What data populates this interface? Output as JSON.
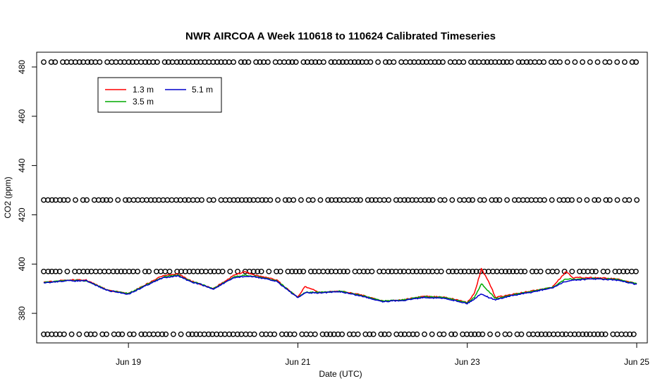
{
  "chart_data": {
    "type": "line",
    "title": "NWR AIRCOA A  Week 110618 to 110624  Calibrated Timeseries",
    "xlabel": "Date (UTC)",
    "ylabel": "CO2 (ppm)",
    "xlim": [
      "2011-06-17T22:00",
      "2011-06-25T03:00"
    ],
    "ylim": [
      368,
      486
    ],
    "x_ticks": [
      {
        "label": "Jun 19",
        "date": "2011-06-19"
      },
      {
        "label": "Jun 21",
        "date": "2011-06-21"
      },
      {
        "label": "Jun 23",
        "date": "2011-06-23"
      },
      {
        "label": "Jun 25",
        "date": "2011-06-25"
      }
    ],
    "y_ticks": [
      380,
      400,
      420,
      440,
      460,
      480
    ],
    "grid": false,
    "legend": {
      "placement": "top-left",
      "entries": [
        {
          "label": "1.3 m",
          "color": "#ff0000"
        },
        {
          "label": "3.5 m",
          "color": "#00aa00"
        },
        {
          "label": "5.1 m",
          "color": "#0000cc"
        }
      ]
    },
    "series": [
      {
        "name": "1.3 m",
        "color": "#ff0000",
        "x": [
          "2011-06-18T00:00",
          "2011-06-18T06:00",
          "2011-06-18T12:00",
          "2011-06-18T18:00",
          "2011-06-19T00:00",
          "2011-06-19T06:00",
          "2011-06-19T10:00",
          "2011-06-19T14:00",
          "2011-06-19T18:00",
          "2011-06-19T20:00",
          "2011-06-20T00:00",
          "2011-06-20T06:00",
          "2011-06-20T09:00",
          "2011-06-20T12:00",
          "2011-06-20T18:00",
          "2011-06-21T00:00",
          "2011-06-21T02:00",
          "2011-06-21T06:00",
          "2011-06-21T12:00",
          "2011-06-21T18:00",
          "2011-06-22T00:00",
          "2011-06-22T06:00",
          "2011-06-22T12:00",
          "2011-06-22T18:00",
          "2011-06-23T00:00",
          "2011-06-23T02:00",
          "2011-06-23T04:00",
          "2011-06-23T06:00",
          "2011-06-23T08:00",
          "2011-06-23T12:00",
          "2011-06-23T18:00",
          "2011-06-24T00:00",
          "2011-06-24T04:00",
          "2011-06-24T06:00",
          "2011-06-24T12:00",
          "2011-06-24T18:00",
          "2011-06-25T00:00"
        ],
        "values": [
          392.5,
          393.5,
          393.5,
          389.5,
          388.0,
          392.5,
          395.5,
          396.0,
          393.0,
          392.0,
          390.0,
          395.5,
          397.0,
          395.5,
          393.5,
          386.5,
          391.0,
          388.5,
          389.0,
          387.5,
          385.0,
          385.5,
          387.0,
          386.5,
          384.5,
          388.0,
          398.0,
          393.0,
          386.5,
          387.5,
          389.0,
          390.5,
          397.0,
          394.5,
          394.5,
          394.0,
          392.0
        ]
      },
      {
        "name": "3.5 m",
        "color": "#00aa00",
        "x": [
          "2011-06-18T00:00",
          "2011-06-18T06:00",
          "2011-06-18T12:00",
          "2011-06-18T18:00",
          "2011-06-19T00:00",
          "2011-06-19T06:00",
          "2011-06-19T10:00",
          "2011-06-19T14:00",
          "2011-06-19T18:00",
          "2011-06-19T20:00",
          "2011-06-20T00:00",
          "2011-06-20T06:00",
          "2011-06-20T09:00",
          "2011-06-20T12:00",
          "2011-06-20T18:00",
          "2011-06-21T00:00",
          "2011-06-21T02:00",
          "2011-06-21T06:00",
          "2011-06-21T12:00",
          "2011-06-21T18:00",
          "2011-06-22T00:00",
          "2011-06-22T06:00",
          "2011-06-22T12:00",
          "2011-06-22T18:00",
          "2011-06-23T00:00",
          "2011-06-23T02:00",
          "2011-06-23T04:00",
          "2011-06-23T06:00",
          "2011-06-23T08:00",
          "2011-06-23T12:00",
          "2011-06-23T18:00",
          "2011-06-24T00:00",
          "2011-06-24T04:00",
          "2011-06-24T06:00",
          "2011-06-24T12:00",
          "2011-06-24T18:00",
          "2011-06-25T00:00"
        ],
        "values": [
          392.5,
          393.3,
          393.3,
          389.4,
          388.0,
          392.3,
          394.8,
          395.5,
          392.8,
          392.2,
          390.0,
          394.8,
          395.5,
          395.0,
          393.3,
          386.5,
          388.5,
          388.5,
          389.0,
          387.3,
          385.0,
          385.5,
          386.8,
          386.3,
          384.3,
          386.5,
          392.0,
          389.0,
          386.0,
          387.3,
          388.8,
          390.5,
          394.0,
          393.8,
          394.2,
          393.8,
          392.0
        ]
      },
      {
        "name": "5.1 m",
        "color": "#0000cc",
        "x": [
          "2011-06-18T00:00",
          "2011-06-18T06:00",
          "2011-06-18T12:00",
          "2011-06-18T18:00",
          "2011-06-19T00:00",
          "2011-06-19T06:00",
          "2011-06-19T10:00",
          "2011-06-19T14:00",
          "2011-06-19T18:00",
          "2011-06-19T20:00",
          "2011-06-20T00:00",
          "2011-06-20T06:00",
          "2011-06-20T09:00",
          "2011-06-20T12:00",
          "2011-06-20T18:00",
          "2011-06-21T00:00",
          "2011-06-21T02:00",
          "2011-06-21T06:00",
          "2011-06-21T12:00",
          "2011-06-21T18:00",
          "2011-06-22T00:00",
          "2011-06-22T06:00",
          "2011-06-22T12:00",
          "2011-06-22T18:00",
          "2011-06-23T00:00",
          "2011-06-23T02:00",
          "2011-06-23T04:00",
          "2011-06-23T06:00",
          "2011-06-23T08:00",
          "2011-06-23T12:00",
          "2011-06-23T18:00",
          "2011-06-24T00:00",
          "2011-06-24T04:00",
          "2011-06-24T06:00",
          "2011-06-24T12:00",
          "2011-06-24T18:00",
          "2011-06-25T00:00"
        ],
        "values": [
          392.3,
          393.2,
          393.2,
          389.3,
          387.8,
          392.0,
          394.5,
          395.3,
          392.5,
          392.0,
          389.8,
          394.5,
          395.0,
          394.8,
          393.0,
          386.3,
          388.3,
          388.3,
          388.8,
          387.0,
          384.8,
          385.3,
          386.5,
          386.0,
          384.0,
          385.8,
          388.0,
          386.5,
          385.5,
          387.0,
          388.5,
          390.3,
          393.0,
          393.5,
          394.0,
          393.5,
          391.8
        ]
      }
    ],
    "marker_rows": [
      {
        "y": 482,
        "symbol": "o"
      },
      {
        "y": 426,
        "symbol": "o"
      },
      {
        "y": 397,
        "symbol": "o"
      },
      {
        "y": 371.5,
        "symbol": "o"
      }
    ]
  }
}
